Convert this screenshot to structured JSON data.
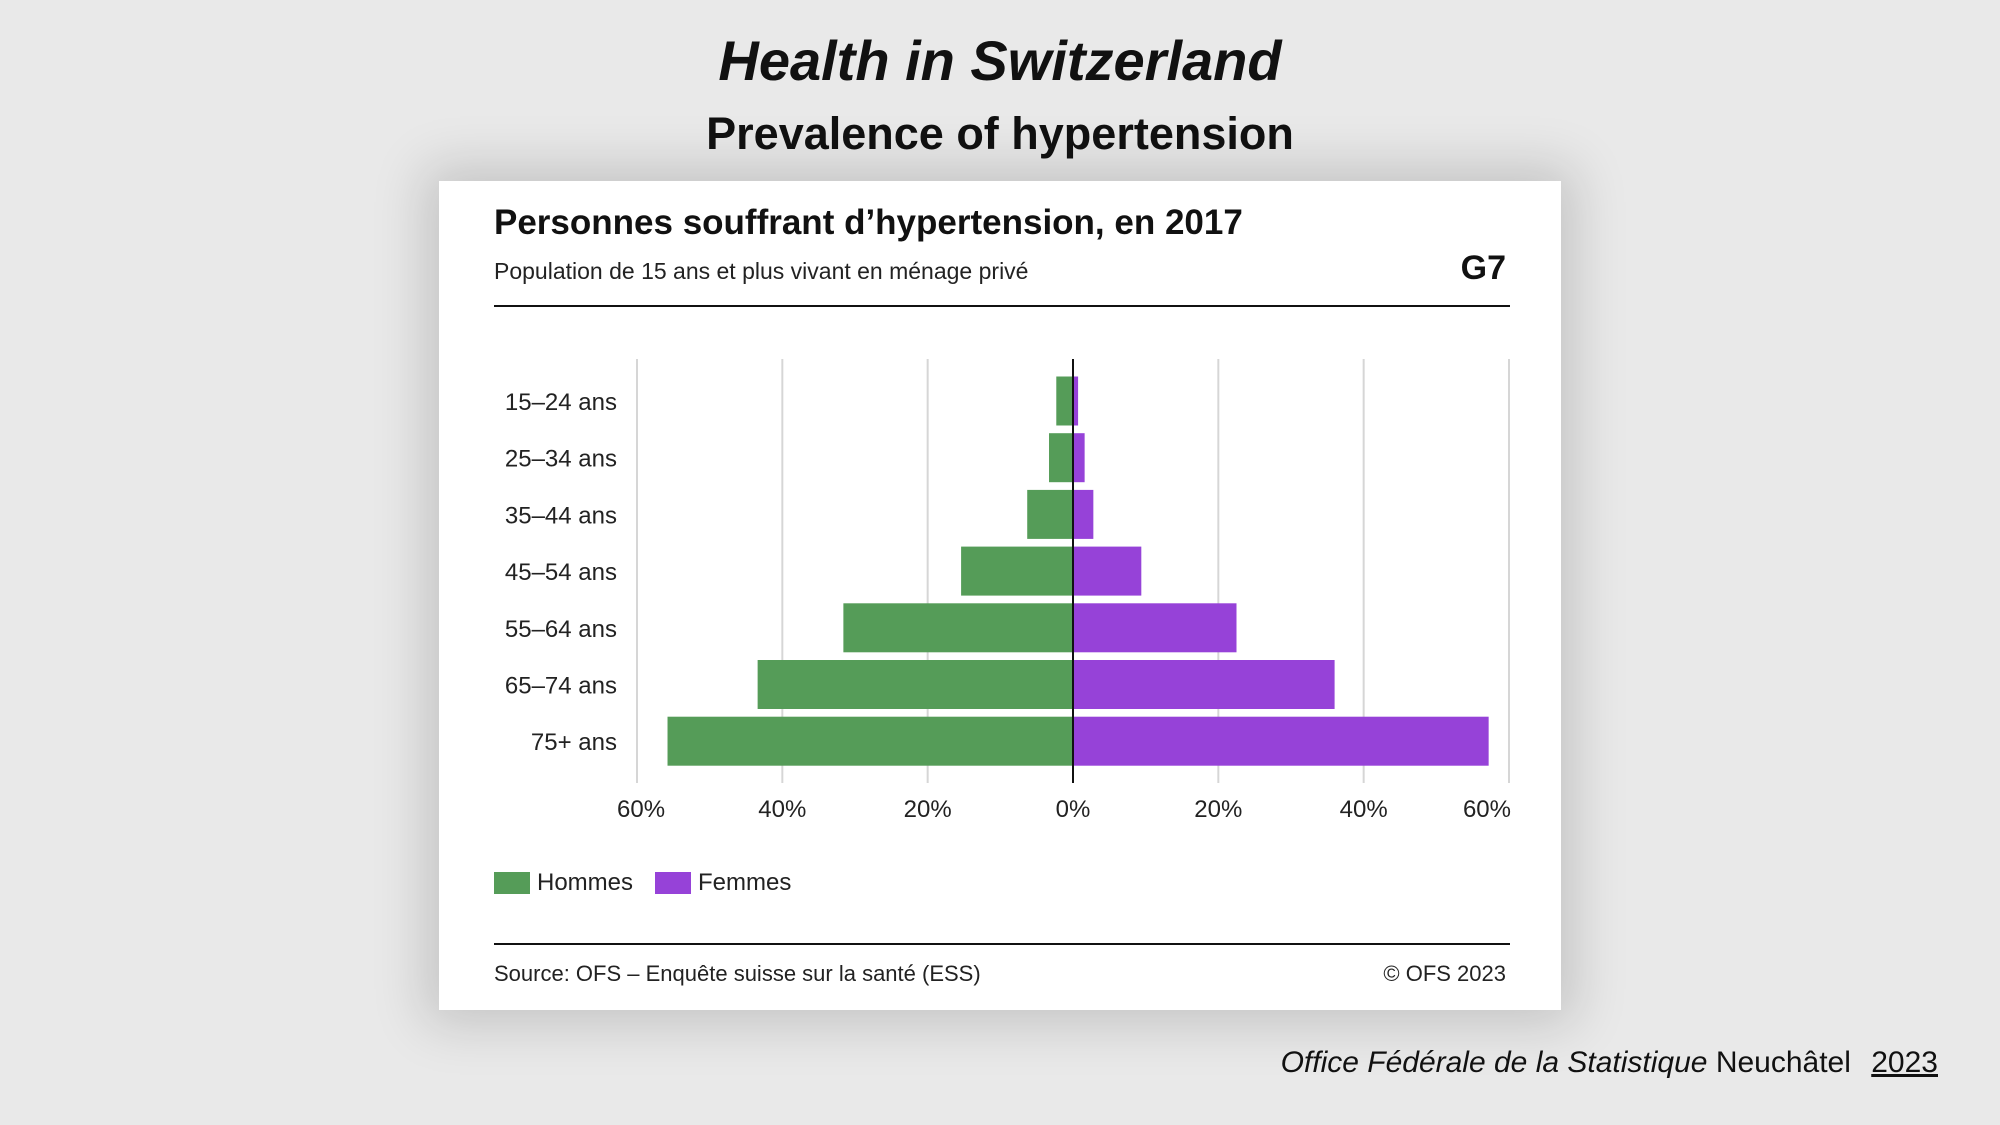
{
  "slide": {
    "title": "Health in Switzerland",
    "subtitle": "Prevalence of hypertension"
  },
  "card": {
    "title": "Personnes souffrant d’hypertension, en 2017",
    "subtitle": "Population de 15 ans et plus vivant en ménage privé",
    "code": "G7",
    "source": "Source: OFS – Enquête suisse sur la santé (ESS)",
    "copyright": "© OFS 2023"
  },
  "legend": {
    "men": "Hommes",
    "women": "Femmes"
  },
  "colors": {
    "men": "#559c58",
    "women": "#9642d8",
    "grid": "#d6d6d6",
    "axis": "#111111"
  },
  "footer": {
    "org": "Office Fédérale de la Statistique",
    "city": "Neuchâtel",
    "year": "2023"
  },
  "chart_data": {
    "type": "bar",
    "orientation": "horizontal-diverging",
    "title": "Personnes souffrant d’hypertension, en 2017",
    "categories": [
      "15–24 ans",
      "25–34 ans",
      "35–44 ans",
      "45–54 ans",
      "55–64 ans",
      "65–74 ans",
      "75+ ans"
    ],
    "series": [
      {
        "name": "Hommes",
        "side": "left",
        "values": [
          2.3,
          3.3,
          6.3,
          15.4,
          31.6,
          43.4,
          55.8
        ]
      },
      {
        "name": "Femmes",
        "side": "right",
        "values": [
          0.7,
          1.6,
          2.8,
          9.4,
          22.5,
          36.0,
          57.2
        ]
      }
    ],
    "xlim": [
      -60,
      60
    ],
    "ticks": [
      -60,
      -40,
      -20,
      0,
      20,
      40,
      60
    ],
    "tick_labels": [
      "60%",
      "40%",
      "20%",
      "0%",
      "20%",
      "40%",
      "60%"
    ],
    "grid": true,
    "legend_position": "bottom-left"
  }
}
